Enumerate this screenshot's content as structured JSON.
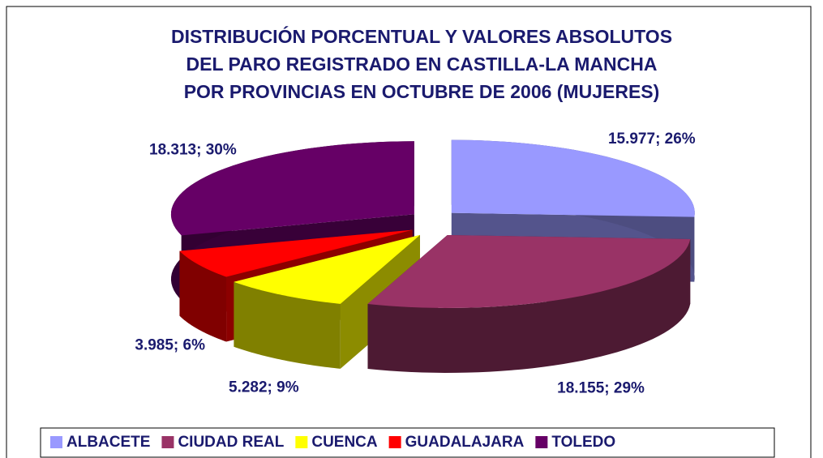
{
  "chart_data": {
    "type": "pie3d",
    "title": [
      "DISTRIBUCIÓN PORCENTUAL Y VALORES ABSOLUTOS",
      "DEL PARO REGISTRADO EN CASTILLA-LA MANCHA",
      "POR PROVINCIAS EN OCTUBRE DE 2006 (MUJERES)"
    ],
    "categories": [
      "ALBACETE",
      "CIUDAD REAL",
      "CUENCA",
      "GUADALAJARA",
      "TOLEDO"
    ],
    "values": [
      15977,
      18155,
      5282,
      3985,
      18313
    ],
    "value_labels": [
      "15.977; 26%",
      "18.155; 29%",
      "5.282; 9%",
      "3.985; 6%",
      "18.313; 30%"
    ],
    "colors": [
      "#9999ff",
      "#993366",
      "#ffff00",
      "#ff0000",
      "#660066"
    ],
    "legend": "bottom"
  }
}
